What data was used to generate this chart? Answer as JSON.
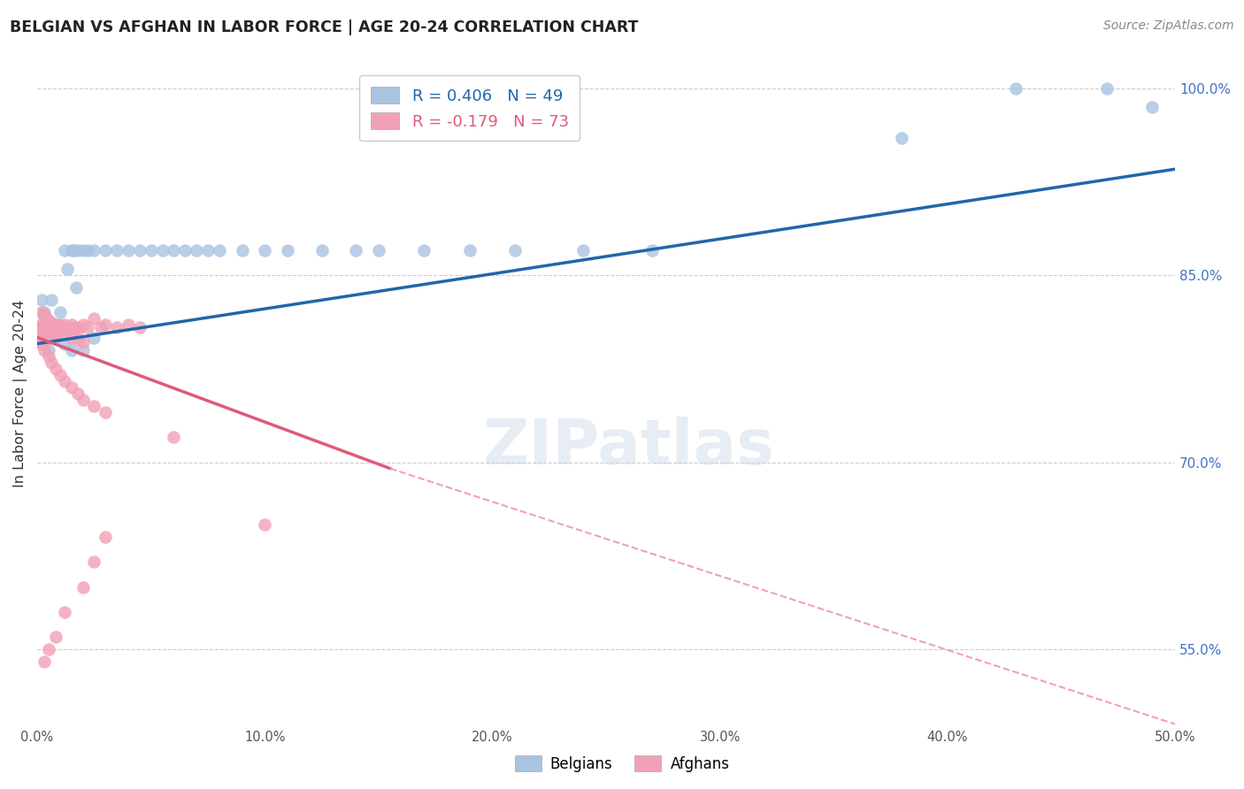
{
  "title": "BELGIAN VS AFGHAN IN LABOR FORCE | AGE 20-24 CORRELATION CHART",
  "source": "Source: ZipAtlas.com",
  "ylabel": "In Labor Force | Age 20-24",
  "xlim": [
    0.0,
    0.5
  ],
  "ylim": [
    0.488,
    1.022
  ],
  "grid_yticks": [
    0.55,
    0.7,
    0.85,
    1.0
  ],
  "xtick_vals": [
    0.0,
    0.05,
    0.1,
    0.15,
    0.2,
    0.25,
    0.3,
    0.35,
    0.4,
    0.45,
    0.5
  ],
  "xtick_labels": [
    "0.0%",
    "",
    "10.0%",
    "",
    "20.0%",
    "",
    "30.0%",
    "",
    "40.0%",
    "",
    "50.0%"
  ],
  "right_ytick_labels": [
    "55.0%",
    "70.0%",
    "85.0%",
    "100.0%"
  ],
  "belgian_R": 0.406,
  "belgian_N": 49,
  "afghan_R": -0.179,
  "afghan_N": 73,
  "belgian_color": "#a8c4e0",
  "afghan_color": "#f2a0b5",
  "belgian_line_color": "#2166ac",
  "afghan_line_color": "#e05a7a",
  "afghan_dash_color": "#f2a0b5",
  "belgian_line": {
    "x0": 0.0,
    "y0": 0.795,
    "x1": 0.5,
    "y1": 0.935
  },
  "afghan_solid_line": {
    "x0": 0.0,
    "y0": 0.8,
    "x1": 0.155,
    "y1": 0.695
  },
  "afghan_dash_line": {
    "x0": 0.155,
    "y0": 0.695,
    "x1": 0.5,
    "y1": 0.49
  },
  "belgians_x": [
    0.001,
    0.002,
    0.003,
    0.004,
    0.005,
    0.006,
    0.008,
    0.01,
    0.012,
    0.013,
    0.015,
    0.016,
    0.017,
    0.018,
    0.02,
    0.022,
    0.025,
    0.03,
    0.035,
    0.04,
    0.045,
    0.05,
    0.055,
    0.06,
    0.065,
    0.07,
    0.075,
    0.08,
    0.09,
    0.1,
    0.11,
    0.125,
    0.14,
    0.15,
    0.17,
    0.19,
    0.21,
    0.24,
    0.27,
    0.38,
    0.43,
    0.47,
    0.49,
    0.003,
    0.008,
    0.012,
    0.015,
    0.02,
    0.025
  ],
  "belgians_y": [
    0.808,
    0.83,
    0.82,
    0.81,
    0.79,
    0.83,
    0.81,
    0.82,
    0.87,
    0.855,
    0.87,
    0.87,
    0.84,
    0.87,
    0.87,
    0.87,
    0.87,
    0.87,
    0.87,
    0.87,
    0.87,
    0.87,
    0.87,
    0.87,
    0.87,
    0.87,
    0.87,
    0.87,
    0.87,
    0.87,
    0.87,
    0.87,
    0.87,
    0.87,
    0.87,
    0.87,
    0.87,
    0.87,
    0.87,
    0.96,
    1.0,
    1.0,
    0.985,
    0.795,
    0.8,
    0.795,
    0.79,
    0.79,
    0.8
  ],
  "afghans_x": [
    0.001,
    0.001,
    0.001,
    0.001,
    0.002,
    0.002,
    0.002,
    0.002,
    0.003,
    0.003,
    0.003,
    0.004,
    0.004,
    0.005,
    0.005,
    0.006,
    0.006,
    0.007,
    0.007,
    0.008,
    0.008,
    0.009,
    0.01,
    0.01,
    0.011,
    0.012,
    0.013,
    0.014,
    0.015,
    0.016,
    0.017,
    0.018,
    0.02,
    0.022,
    0.025,
    0.028,
    0.03,
    0.035,
    0.04,
    0.045,
    0.002,
    0.003,
    0.005,
    0.006,
    0.008,
    0.01,
    0.012,
    0.015,
    0.018,
    0.02,
    0.025,
    0.03,
    0.002,
    0.003,
    0.004,
    0.005,
    0.006,
    0.007,
    0.008,
    0.01,
    0.012,
    0.015,
    0.018,
    0.02,
    0.06,
    0.1,
    0.03,
    0.025,
    0.02,
    0.012,
    0.008,
    0.005,
    0.003
  ],
  "afghans_y": [
    0.808,
    0.804,
    0.8,
    0.796,
    0.81,
    0.806,
    0.802,
    0.798,
    0.815,
    0.81,
    0.805,
    0.81,
    0.805,
    0.81,
    0.8,
    0.812,
    0.808,
    0.81,
    0.802,
    0.81,
    0.804,
    0.808,
    0.81,
    0.806,
    0.808,
    0.81,
    0.806,
    0.808,
    0.81,
    0.806,
    0.808,
    0.806,
    0.81,
    0.808,
    0.815,
    0.808,
    0.81,
    0.808,
    0.81,
    0.808,
    0.795,
    0.79,
    0.785,
    0.78,
    0.775,
    0.77,
    0.765,
    0.76,
    0.755,
    0.75,
    0.745,
    0.74,
    0.82,
    0.818,
    0.816,
    0.814,
    0.812,
    0.81,
    0.808,
    0.806,
    0.804,
    0.8,
    0.798,
    0.796,
    0.72,
    0.65,
    0.64,
    0.62,
    0.6,
    0.58,
    0.56,
    0.55,
    0.54
  ]
}
